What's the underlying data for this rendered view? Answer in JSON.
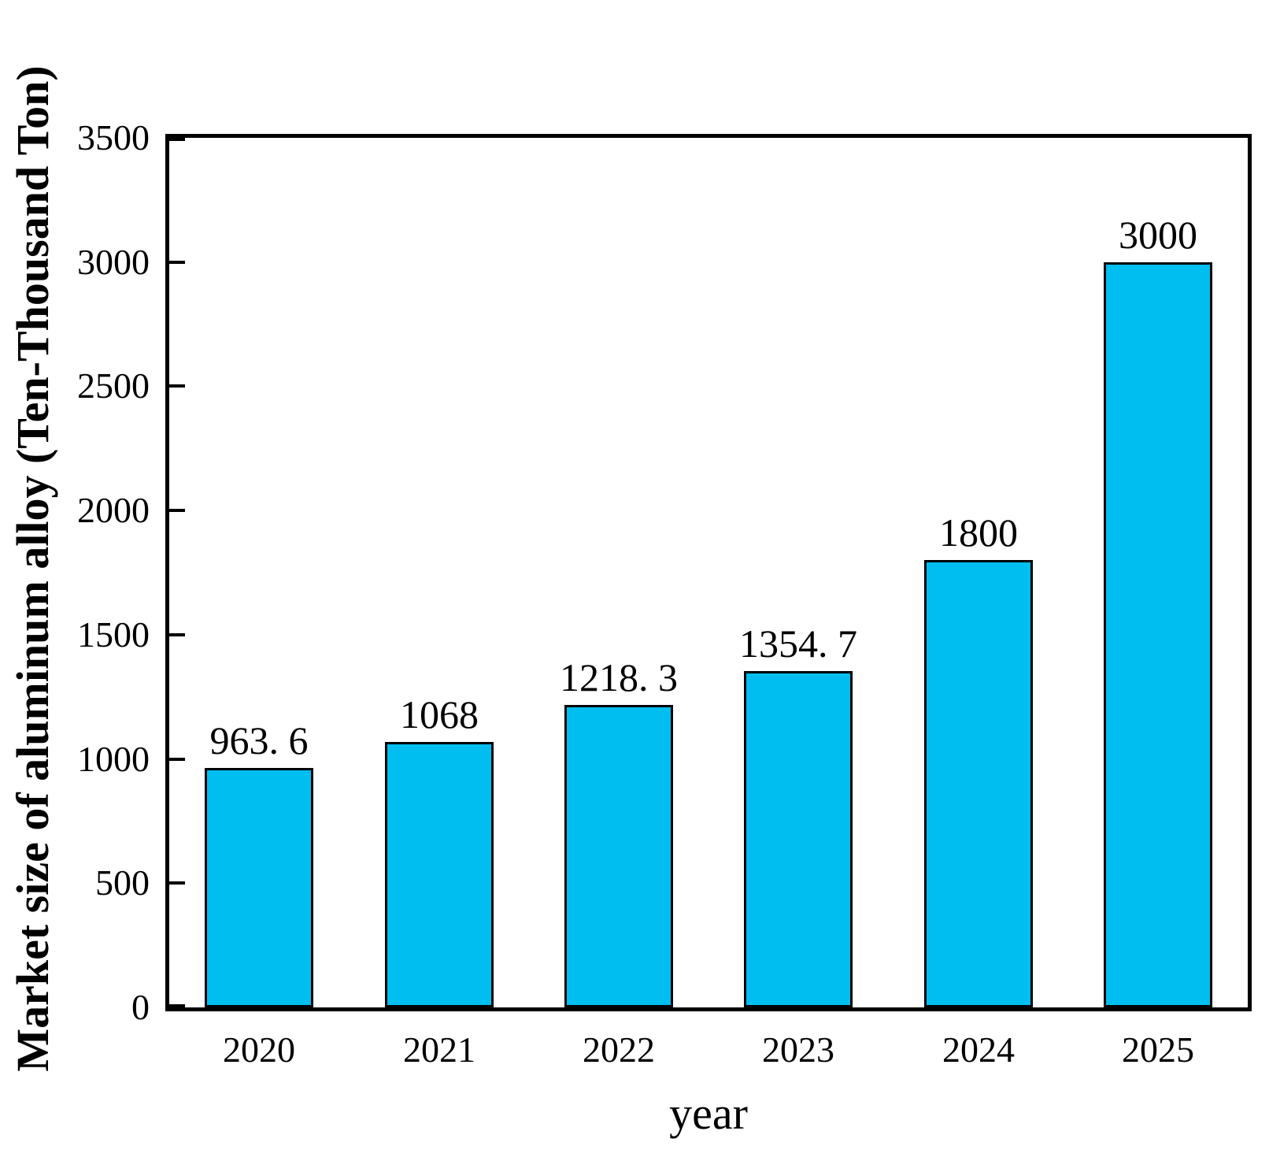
{
  "figure": {
    "background_color": "#ffffff",
    "text_color": "#000000"
  },
  "chart_data": {
    "type": "bar",
    "title": "",
    "categories": [
      "2020",
      "2021",
      "2022",
      "2023",
      "2024",
      "2025"
    ],
    "values": [
      963.6,
      1068,
      1218.3,
      1354.7,
      1800,
      3000
    ],
    "value_labels": [
      "963. 6",
      "1068",
      "1218. 3",
      "1354. 7",
      "1800",
      "3000"
    ],
    "xlabel": "year",
    "ylabel": "Market size of aluminum alloy (Ten-Thousand Ton)",
    "ylim": [
      0,
      3500
    ],
    "yticks": [
      0,
      500,
      1000,
      1500,
      2000,
      2500,
      3000,
      3500
    ],
    "ytick_labels": [
      "0",
      "500",
      "1000",
      "1500",
      "2000",
      "2500",
      "3000",
      "3500"
    ],
    "bar_color": "#00bff0",
    "bar_edge_color": "#000000",
    "axis_color": "#000000",
    "grid": false,
    "legend": null
  }
}
